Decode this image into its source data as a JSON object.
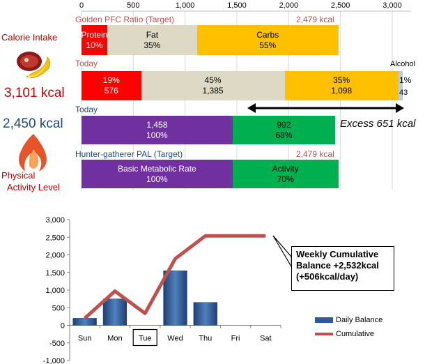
{
  "calorie_intake_label": "Calorie Intake",
  "calorie_intake_value": "3,101 kcal",
  "target_value": "2,450 kcal",
  "pal_label_1": "Physical",
  "pal_label_2": "Activity Level",
  "colors": {
    "protein": "#ff0000",
    "fat": "#ddd9c4",
    "carbs": "#ffc000",
    "alcohol": "#b8cce4",
    "bmr": "#7030a0",
    "activity": "#00b050",
    "line": "#c0504d",
    "bar": "#2e5c9a"
  },
  "top_chart": {
    "axis_ticks": [
      "0",
      "500",
      "1,000",
      "1,500",
      "2,000",
      "2,500",
      "3,000"
    ],
    "axis_tick_values": [
      0,
      500,
      1000,
      1500,
      2000,
      2500,
      3000
    ],
    "pfc_target_label": "Golden PFC Ratio (Target)",
    "pfc_target_kcal": "2,479 kcal",
    "pfc_target": [
      {
        "name": "Protein",
        "pct": "10%",
        "value": 248
      },
      {
        "name": "Fat",
        "pct": "35%",
        "value": 868
      },
      {
        "name": "Carbs",
        "pct": "55%",
        "value": 1363
      }
    ],
    "today_intake_label": "Today",
    "alcohol_label": "Alcohol",
    "today_intake": [
      {
        "name": "Protein",
        "pct": "19%",
        "kcal": "576",
        "value": 576
      },
      {
        "name": "Fat",
        "pct": "45%",
        "kcal": "1,385",
        "value": 1385
      },
      {
        "name": "Carbs",
        "pct": "35%",
        "kcal": "1,098",
        "value": 1098
      },
      {
        "name": "Alcohol",
        "pct": "1%",
        "kcal": "43",
        "value": 43
      }
    ],
    "today_burn_label": "Today",
    "today_burn": [
      {
        "name": "Basic Metabolic Rate",
        "kcal": "1,458",
        "pct": "100%",
        "value": 1458
      },
      {
        "name": "Activity",
        "kcal": "992",
        "pct": "68%",
        "value": 992
      }
    ],
    "excess_label": "Excess 651 kcal",
    "pal_target_label": "Hunter-gatherer  PAL (Target)",
    "pal_target_kcal": "2,479 kcal",
    "pal_target": [
      {
        "name": "Basic Metabolic Rate",
        "pct": "100%",
        "value": 1458
      },
      {
        "name": "Activity",
        "pct": "70%",
        "value": 1021
      }
    ]
  },
  "chart_data": {
    "type": "bar",
    "categories": [
      "Sun",
      "Mon",
      "Tue",
      "Wed",
      "Thu",
      "Fri",
      "Sat"
    ],
    "highlighted_category": "Tue",
    "series": [
      {
        "name": "Daily Balance",
        "type": "bar",
        "values": [
          200,
          750,
          null,
          1550,
          650,
          null,
          null
        ]
      },
      {
        "name": "Cumulative",
        "type": "line",
        "values": [
          200,
          970,
          340,
          1890,
          2540,
          2540,
          2540
        ]
      }
    ],
    "yticks": [
      "3,000",
      "2,500",
      "2,000",
      "1,500",
      "1,000",
      "500",
      "0",
      "-500",
      "-1,000"
    ],
    "ylim": [
      -1000,
      3000
    ],
    "annotation": {
      "line1": "Weekly Cumulative",
      "line2": "Balance +2,532kcal",
      "line3": "(+506kcal/day)"
    },
    "legend_position": "bottom-right"
  }
}
